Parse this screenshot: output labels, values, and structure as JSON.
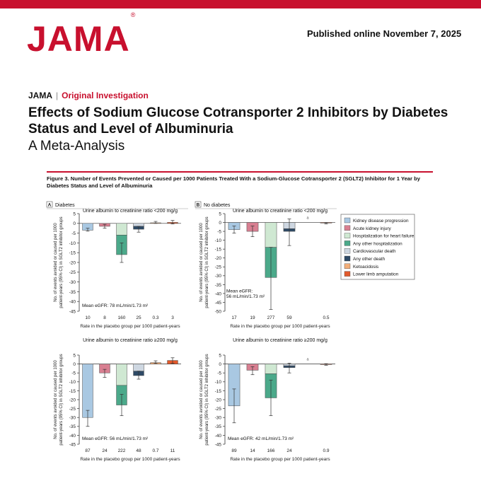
{
  "header": {
    "logo": "JAMA",
    "logo_mark": "®",
    "published": "Published online November 7, 2025",
    "journal": "JAMA",
    "separator": "|",
    "section": "Original Investigation",
    "title": "Effects of Sodium Glucose Cotransporter 2 Inhibitors by Diabetes Status and Level of Albuminuria",
    "subtitle": "A Meta-Analysis"
  },
  "figure": {
    "caption": "Figure 3. Number of Events Prevented or Caused per 1000 Patients Treated With a Sodium-Glucose Cotransporter 2 (SGLT2) Inhibitor for 1 Year by Diabetes Status and Level of Albuminuria"
  },
  "colors": {
    "brand": "#c8102e",
    "Kidney disease progression": "#a9c8e2",
    "Acute kidney injury": "#d87f91",
    "Hospitalization for heart failure": "#cfe8d2",
    "Any other hospitalization": "#4ba98a",
    "Cardiovascular death": "#ced7e1",
    "Any other death": "#2e4a66",
    "Ketoacidosis": "#f3ae79",
    "Lower limb amputation": "#e2592b"
  },
  "chart_data": {
    "type": "bar",
    "ylabel": "No. of events avoided or caused per 1000 patient-years (95% CI) in SGLT2 inhibitor groups",
    "xlabel": "Rate in the placebo group per 1000 patient-years",
    "legend": {
      "placement": "right",
      "entries": [
        "Kidney disease progression",
        "Acute kidney injury",
        "Hospitalization for heart failure",
        "Any other hospitalization",
        "Cardiovascular death",
        "Any other death",
        "Ketoacidosis",
        "Lower limb amputation"
      ]
    },
    "panels": [
      {
        "tag": "A",
        "group": "Diabetes",
        "subtitle": "Urine albumin to creatinine ratio <200 mg/g",
        "ylim": [
          -45,
          5
        ],
        "yticks": [
          5,
          0,
          -5,
          -10,
          -15,
          -20,
          -25,
          -30,
          -35,
          -40,
          -45
        ],
        "egfr": "Mean eGFR: 78 mL/min/1.73 m²",
        "rates": [
          "10",
          "8",
          "160",
          "25",
          "0.3",
          "3"
        ],
        "bars": [
          {
            "outcome": "Kidney disease progression",
            "slot": 0,
            "value": -3.5,
            "ci": [
              -4,
              -2.5
            ]
          },
          {
            "outcome": "Acute kidney injury",
            "slot": 1,
            "value": -1.5,
            "ci": [
              -2.5,
              -0.5
            ]
          },
          {
            "outcome": "Hospitalization for heart failure",
            "slot": 2,
            "value": -6,
            "stack_base": 0
          },
          {
            "outcome": "Any other hospitalization",
            "slot": 2,
            "value": -10,
            "stack_base": -6,
            "ci": [
              -20,
              -10
            ]
          },
          {
            "outcome": "Cardiovascular death",
            "slot": 3,
            "value": -1.5,
            "stack_base": 0
          },
          {
            "outcome": "Any other death",
            "slot": 3,
            "value": -1.5,
            "stack_base": -1.5,
            "ci": [
              -4.5,
              -1.5
            ]
          },
          {
            "outcome": "Ketoacidosis",
            "slot": 4,
            "value": 0.3,
            "ci": [
              0,
              1
            ]
          },
          {
            "outcome": "Lower limb amputation",
            "slot": 5,
            "value": 0.5,
            "ci": [
              -0.3,
              1.5
            ]
          }
        ]
      },
      {
        "tag": "B",
        "group": "No diabetes",
        "subtitle": "Urine albumin to creatinine ratio <200 mg/g",
        "ylim": [
          -50,
          5
        ],
        "yticks": [
          5,
          0,
          -5,
          -10,
          -15,
          -20,
          -25,
          -30,
          -35,
          -40,
          -45,
          -50
        ],
        "egfr": "Mean eGFR: 56 mL/min/1.73 m²",
        "rates": [
          "17",
          "19",
          "277",
          "59",
          "",
          "0.5"
        ],
        "bars": [
          {
            "outcome": "Kidney disease progression",
            "slot": 0,
            "value": -4,
            "ci": [
              -6,
              -2
            ]
          },
          {
            "outcome": "Acute kidney injury",
            "slot": 1,
            "value": -5,
            "ci": [
              -8,
              -2
            ]
          },
          {
            "outcome": "Hospitalization for heart failure",
            "slot": 2,
            "value": -14,
            "stack_base": 0
          },
          {
            "outcome": "Any other hospitalization",
            "slot": 2,
            "value": -17,
            "stack_base": -14,
            "ci": [
              -49,
              -14
            ]
          },
          {
            "outcome": "Cardiovascular death",
            "slot": 3,
            "value": -3.5,
            "stack_base": 0
          },
          {
            "outcome": "Any other death",
            "slot": 3,
            "value": -1.5,
            "stack_base": -3.5,
            "ci": [
              -13,
              2
            ]
          },
          {
            "outcome": "Lower limb amputation",
            "slot": 5,
            "value": -0.3,
            "ci": [
              -0.8,
              0
            ]
          }
        ],
        "notes": [
          {
            "slot": 4,
            "text": "a"
          }
        ]
      },
      {
        "tag": "",
        "group": "",
        "subtitle": "Urine albumin to creatinine ratio ≥200 mg/g",
        "ylim": [
          -45,
          5
        ],
        "yticks": [
          5,
          0,
          -5,
          -10,
          -15,
          -20,
          -25,
          -30,
          -35,
          -40,
          -45
        ],
        "egfr": "Mean eGFR: 56 mL/min/1.73 m²",
        "rates": [
          "87",
          "24",
          "222",
          "48",
          "0.7",
          "11"
        ],
        "bars": [
          {
            "outcome": "Kidney disease progression",
            "slot": 0,
            "value": -30,
            "ci": [
              -35,
              -26
            ]
          },
          {
            "outcome": "Acute kidney injury",
            "slot": 1,
            "value": -5,
            "ci": [
              -7.5,
              -3
            ]
          },
          {
            "outcome": "Hospitalization for heart failure",
            "slot": 2,
            "value": -12,
            "stack_base": 0
          },
          {
            "outcome": "Any other hospitalization",
            "slot": 2,
            "value": -11,
            "stack_base": -12,
            "ci": [
              -29,
              -17
            ]
          },
          {
            "outcome": "Cardiovascular death",
            "slot": 3,
            "value": -4,
            "stack_base": 0
          },
          {
            "outcome": "Any other death",
            "slot": 3,
            "value": -2.5,
            "stack_base": -4,
            "ci": [
              -8.5,
              -4
            ]
          },
          {
            "outcome": "Ketoacidosis",
            "slot": 4,
            "value": 0.8,
            "ci": [
              0.3,
              1.8
            ]
          },
          {
            "outcome": "Lower limb amputation",
            "slot": 5,
            "value": 2,
            "ci": [
              0.3,
              3.5
            ]
          }
        ]
      },
      {
        "tag": "",
        "group": "",
        "subtitle": "Urine albumin to creatinine ratio ≥200 mg/g",
        "ylim": [
          -45,
          5
        ],
        "yticks": [
          5,
          0,
          -5,
          -10,
          -15,
          -20,
          -25,
          -30,
          -35,
          -40,
          -45
        ],
        "egfr": "Mean eGFR: 42 mL/min/1.73 m²",
        "rates": [
          "89",
          "14",
          "166",
          "24",
          "",
          "0.9"
        ],
        "bars": [
          {
            "outcome": "Kidney disease progression",
            "slot": 0,
            "value": -23.5,
            "ci": [
              -33,
              -14
            ]
          },
          {
            "outcome": "Acute kidney injury",
            "slot": 1,
            "value": -3.5,
            "ci": [
              -6,
              -1.5
            ]
          },
          {
            "outcome": "Hospitalization for heart failure",
            "slot": 2,
            "value": -5.5,
            "stack_base": 0
          },
          {
            "outcome": "Any other hospitalization",
            "slot": 2,
            "value": -13.5,
            "stack_base": -5.5,
            "ci": [
              -29,
              -9
            ]
          },
          {
            "outcome": "Cardiovascular death",
            "slot": 3,
            "value": -1,
            "stack_base": 0
          },
          {
            "outcome": "Any other death",
            "slot": 3,
            "value": -1,
            "stack_base": -1,
            "ci": [
              -5,
              0.5
            ]
          },
          {
            "outcome": "Lower limb amputation",
            "slot": 5,
            "value": -0.2,
            "ci": [
              -0.7,
              0.2
            ]
          }
        ],
        "notes": [
          {
            "slot": 4,
            "text": "a"
          }
        ]
      }
    ]
  }
}
